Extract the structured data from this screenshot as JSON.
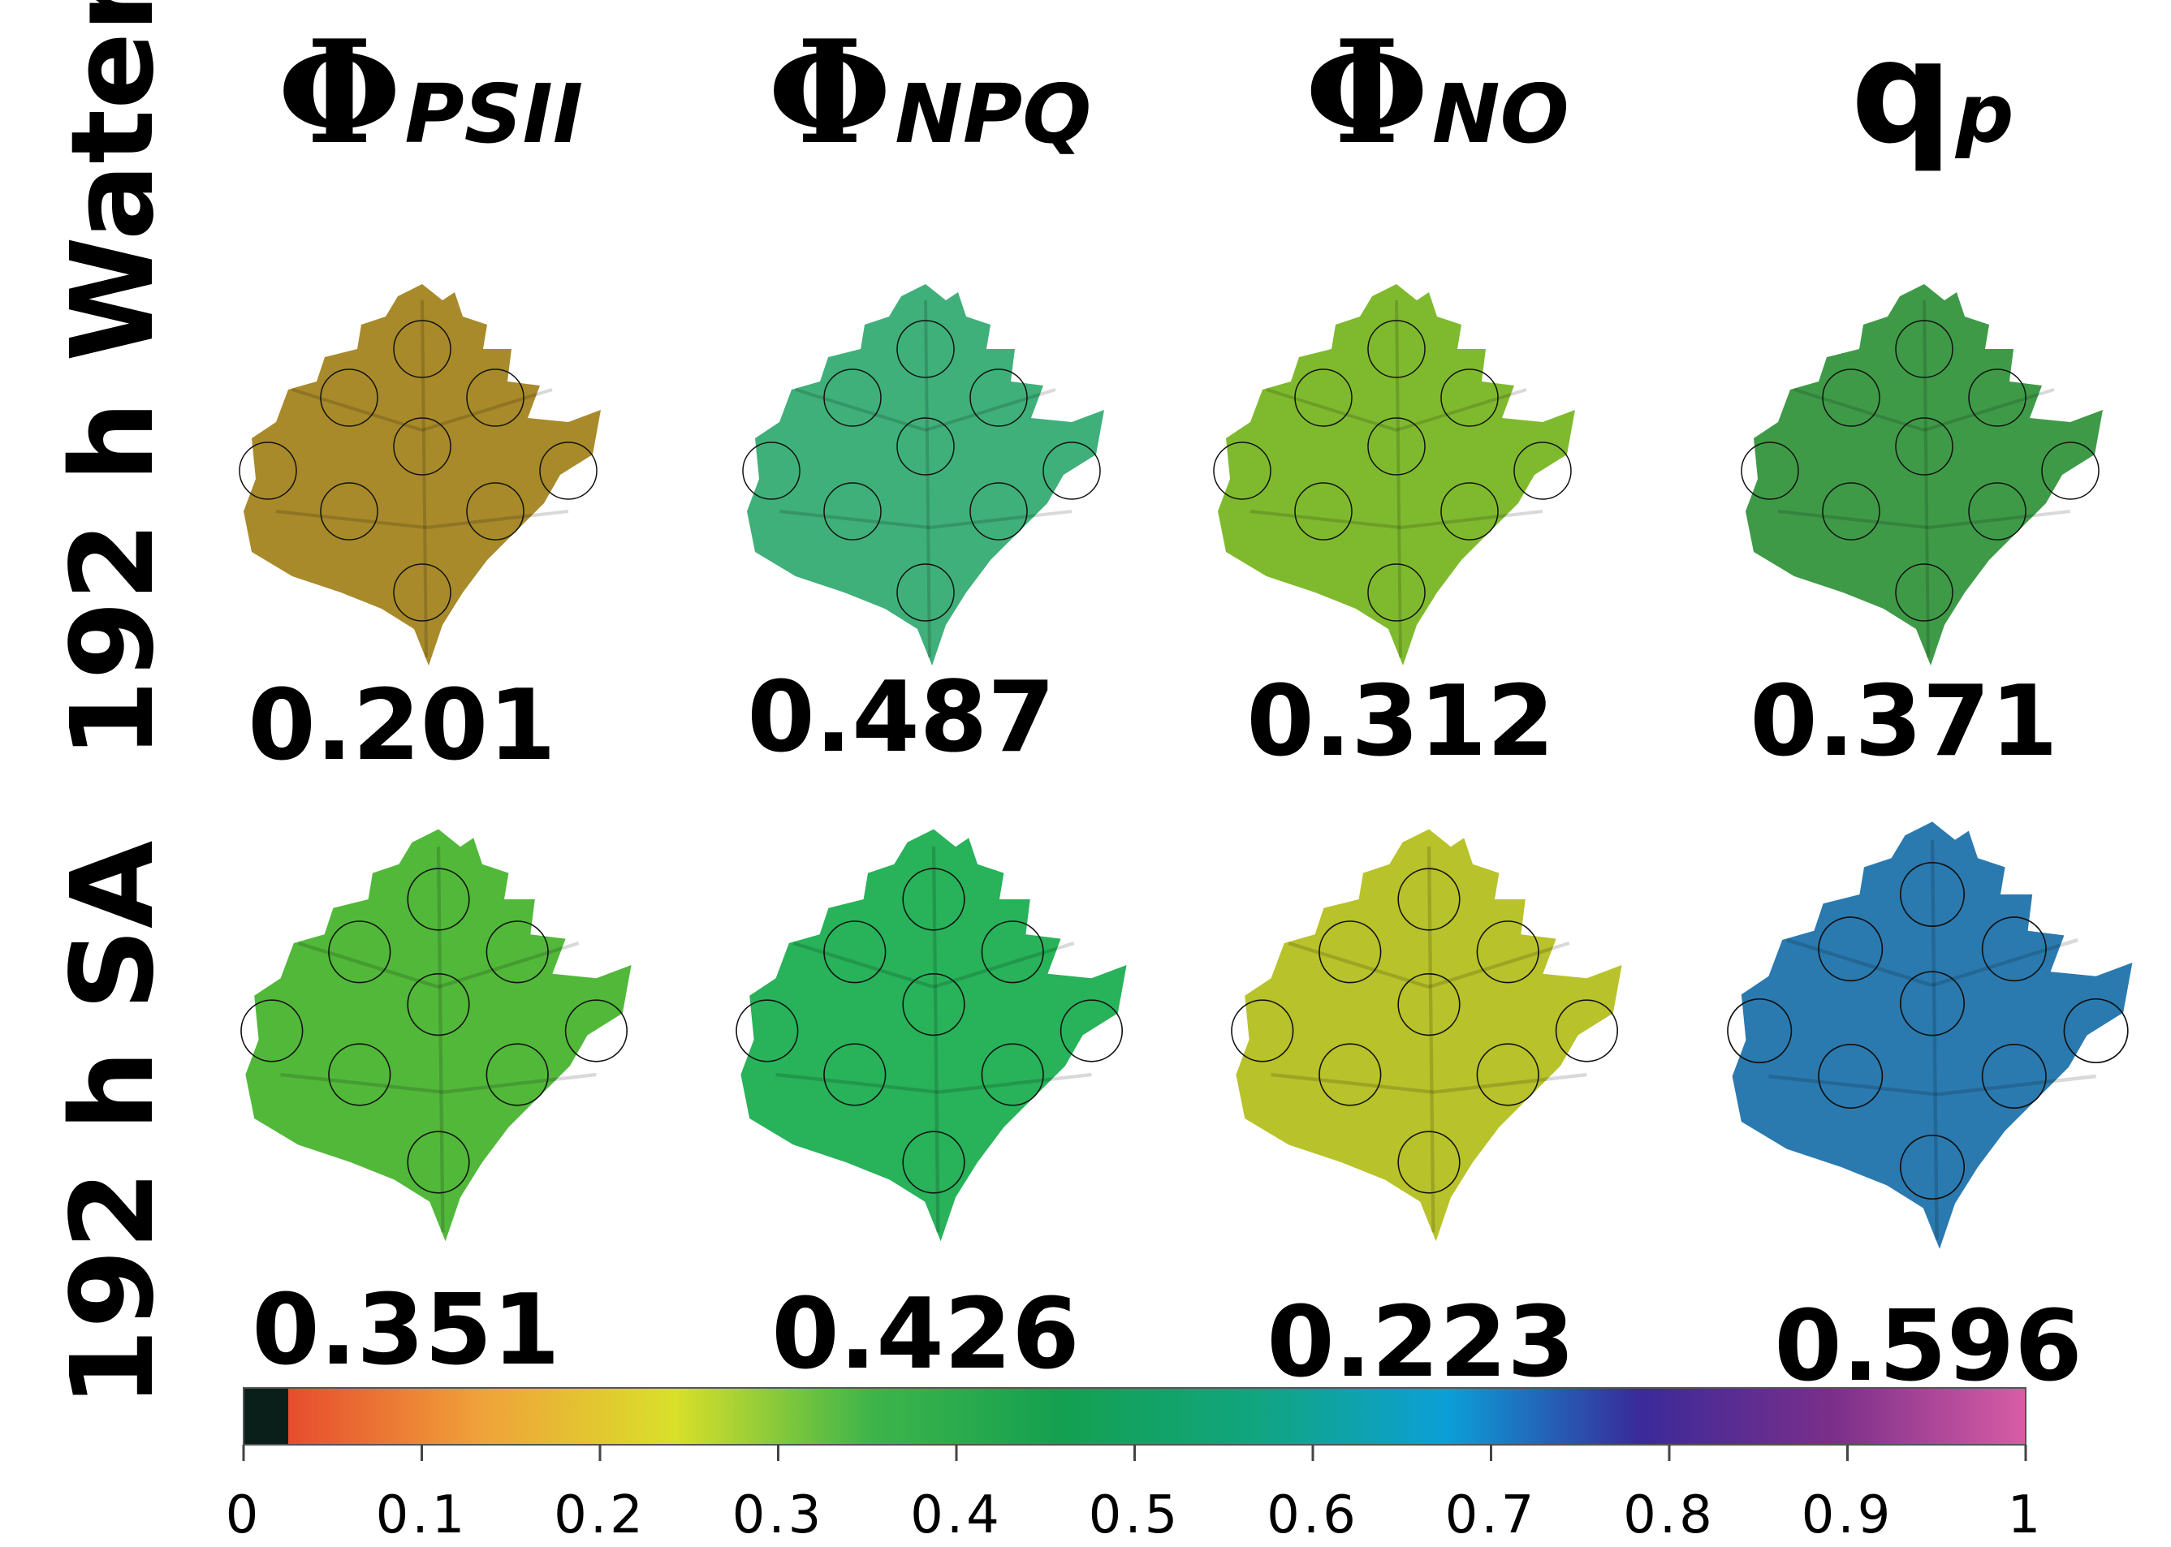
{
  "row_labels": [
    "192 h Water",
    "192 h SA"
  ],
  "columns": [
    {
      "symbol": "Φ",
      "subscript": "PSII"
    },
    {
      "symbol": "Φ",
      "subscript": "NPQ"
    },
    {
      "symbol": "Φ",
      "subscript": "NO"
    },
    {
      "symbol": "q",
      "subscript": "p"
    }
  ],
  "values": {
    "water": [
      "0.201",
      "0.487",
      "0.312",
      "0.371"
    ],
    "sa": [
      "0.351",
      "0.426",
      "0.223",
      "0.596"
    ]
  },
  "colorbar": {
    "ticks": [
      "0",
      "0.1",
      "0.2",
      "0.3",
      "0.4",
      "0.5",
      "0.6",
      "0.7",
      "0.8",
      "0.9",
      "1"
    ],
    "colors": [
      "#0b1f1a",
      "#e64c2e",
      "#f0a23a",
      "#d9e02a",
      "#3fb54a",
      "#14a050",
      "#11a57f",
      "#0c9fd8",
      "#3a2a9a",
      "#7a2f8a",
      "#d95ca5"
    ]
  },
  "leaf_colors": {
    "water": [
      "#a88a2a",
      "#3fb07a",
      "#7fba2e",
      "#3f9a48"
    ],
    "sa": [
      "#52b83a",
      "#28b25a",
      "#b8c22a",
      "#2a7ab0"
    ]
  }
}
